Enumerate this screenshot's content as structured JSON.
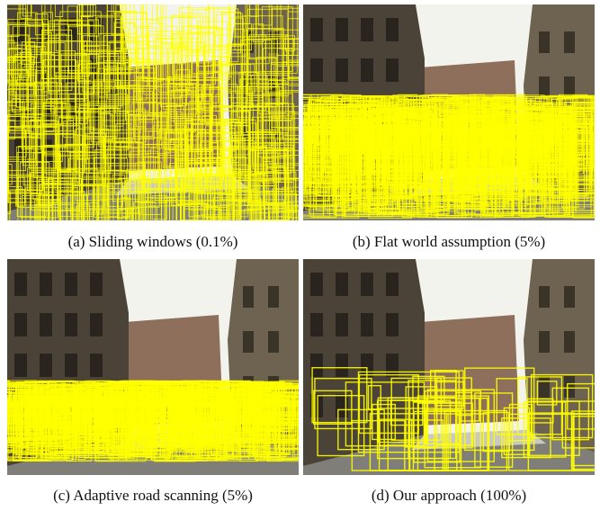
{
  "figure": {
    "panels": [
      {
        "caption": "(a) Sliding windows (0.1%)"
      },
      {
        "caption": "(b) Flat world assumption (5%)"
      },
      {
        "caption": "(c) Adaptive road scanning (5%)"
      },
      {
        "caption": "(d) Our approach (100%)"
      }
    ]
  }
}
